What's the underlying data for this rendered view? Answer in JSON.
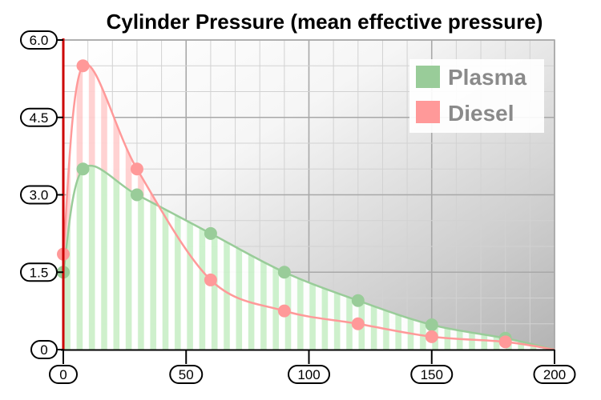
{
  "chart_data": {
    "type": "area",
    "title": "Cylinder Pressure  (mean effective pressure)",
    "xlabel": "",
    "ylabel": "",
    "xlim": [
      0,
      200
    ],
    "ylim": [
      0,
      6.0
    ],
    "x_ticks": [
      "0",
      "50",
      "100",
      "150",
      "200"
    ],
    "y_ticks": [
      "0",
      "1.5",
      "3.0",
      "4.5",
      "6.0"
    ],
    "grid": true,
    "legend_position": "top-right",
    "series": [
      {
        "name": "Plasma",
        "color": "#99cc99",
        "fill": "#d8f8d8",
        "points": [
          [
            0,
            1.5
          ],
          [
            8,
            3.5
          ],
          [
            30,
            3.0
          ],
          [
            60,
            2.25
          ],
          [
            90,
            1.5
          ],
          [
            120,
            0.95
          ],
          [
            150,
            0.48
          ],
          [
            180,
            0.22
          ],
          [
            200,
            0
          ]
        ]
      },
      {
        "name": "Diesel",
        "color": "#ff9999",
        "fill": "#ffd8d8",
        "points": [
          [
            0,
            1.85
          ],
          [
            8,
            5.5
          ],
          [
            30,
            3.5
          ],
          [
            60,
            1.35
          ],
          [
            90,
            0.75
          ],
          [
            120,
            0.5
          ],
          [
            150,
            0.25
          ],
          [
            180,
            0.15
          ],
          [
            200,
            0
          ]
        ]
      }
    ]
  }
}
